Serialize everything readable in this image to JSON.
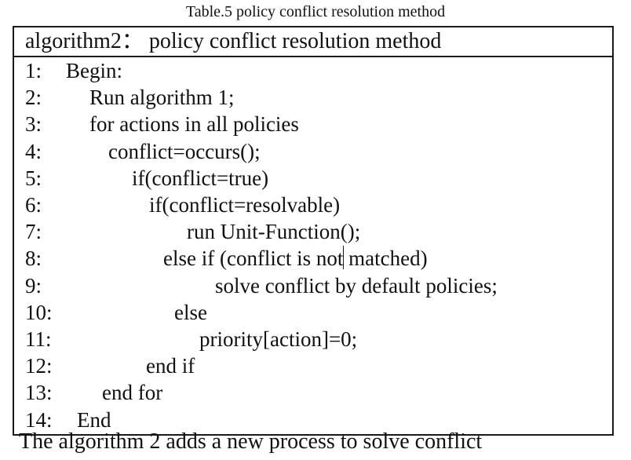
{
  "caption": "Table.5 policy conflict resolution method",
  "header": "algorithm2： policy conflict resolution method",
  "lines": [
    {
      "num": "1:",
      "code": "Begin:"
    },
    {
      "num": "2:",
      "code": "Run algorithm 1;"
    },
    {
      "num": "3:",
      "code": "for actions in all policies"
    },
    {
      "num": "4:",
      "code": "conflict=occurs();"
    },
    {
      "num": "5:",
      "code": "if(conflict=true)"
    },
    {
      "num": "6:",
      "code": "if(conflict=resolvable)"
    },
    {
      "num": "7:",
      "code": "run Unit-Function();"
    },
    {
      "num": "8:",
      "code": "else if (conflict is not matched)"
    },
    {
      "num": "9:",
      "code": "solve conflict by default policies;"
    },
    {
      "num": "10:",
      "code": "else"
    },
    {
      "num": "11:",
      "code": "priority[action]=0;"
    },
    {
      "num": "12:",
      "code": "end if"
    },
    {
      "num": "13:",
      "code": "end for"
    },
    {
      "num": "14:",
      "code": "End"
    }
  ],
  "footer_text": "The algorithm 2 adds a new process to solve conflict"
}
